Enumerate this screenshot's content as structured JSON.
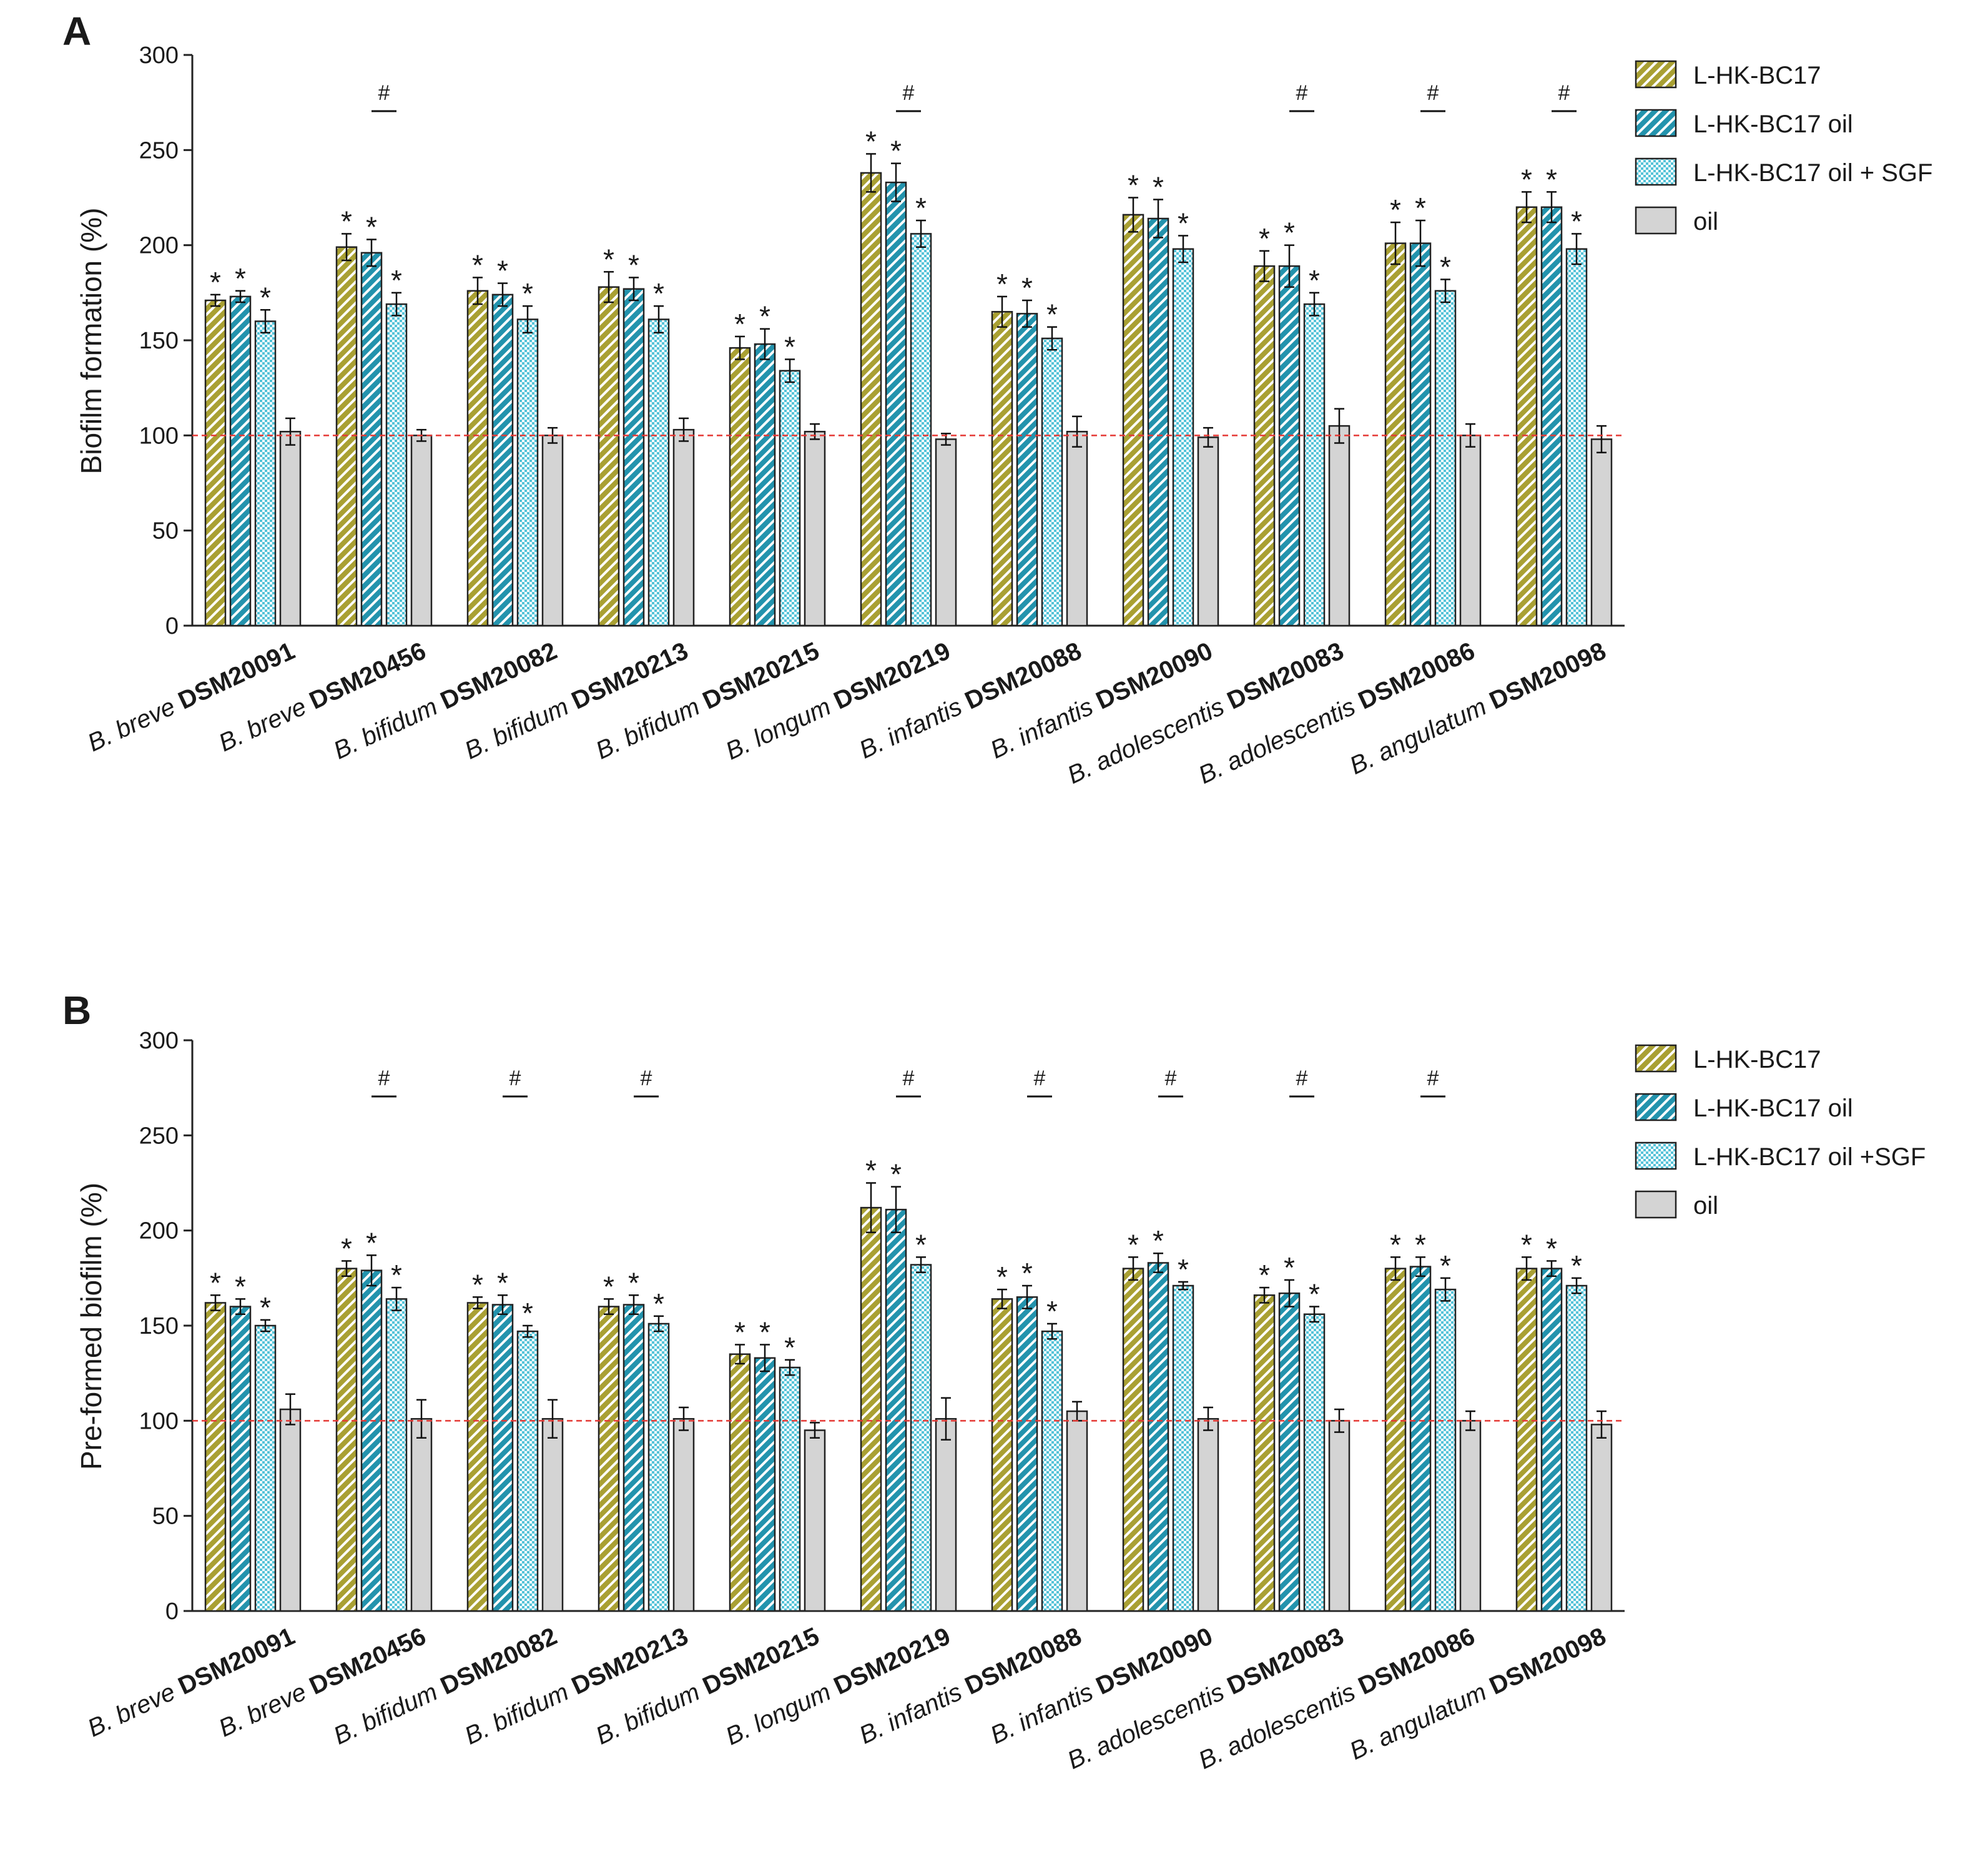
{
  "chart_data": [
    {
      "type": "bar",
      "panel_label": "A",
      "ylabel": "Biofilm formation (%)",
      "xlabel": "",
      "ylim": [
        0,
        300
      ],
      "yticks": [
        0,
        50,
        100,
        150,
        200,
        250,
        300
      ],
      "reference_line": {
        "y": 100,
        "style": "dashed",
        "color": "#e53935"
      },
      "legend_position": "top-right",
      "categories": [
        {
          "species": "B. breve",
          "strain": "DSM20091"
        },
        {
          "species": "B. breve",
          "strain": "DSM20456"
        },
        {
          "species": "B. bifidum",
          "strain": "DSM20082"
        },
        {
          "species": "B. bifidum",
          "strain": "DSM20213"
        },
        {
          "species": "B. bifidum",
          "strain": "DSM20215"
        },
        {
          "species": "B. longum",
          "strain": "DSM20219"
        },
        {
          "species": "B. infantis",
          "strain": "DSM20088"
        },
        {
          "species": "B. infantis",
          "strain": "DSM20090"
        },
        {
          "species": "B. adolescentis",
          "strain": "DSM20083"
        },
        {
          "species": "B. adolescentis",
          "strain": "DSM20086"
        },
        {
          "species": "B. angulatum",
          "strain": "DSM20098"
        }
      ],
      "series": [
        {
          "name": "L-HK-BC17",
          "pattern": "hatch-olive",
          "values": [
            171,
            199,
            176,
            178,
            146,
            238,
            165,
            216,
            189,
            201,
            220
          ],
          "errors": [
            3,
            7,
            7,
            8,
            6,
            10,
            8,
            9,
            8,
            11,
            8
          ],
          "stars": [
            true,
            true,
            true,
            true,
            true,
            true,
            true,
            true,
            true,
            true,
            true
          ]
        },
        {
          "name": "L-HK-BC17 oil",
          "pattern": "hatch-teal",
          "values": [
            173,
            196,
            174,
            177,
            148,
            233,
            164,
            214,
            189,
            201,
            220
          ],
          "errors": [
            3,
            7,
            6,
            6,
            8,
            10,
            7,
            10,
            11,
            12,
            8
          ],
          "stars": [
            true,
            true,
            true,
            true,
            true,
            true,
            true,
            true,
            true,
            true,
            true
          ]
        },
        {
          "name": "L-HK-BC17 oil + SGF",
          "pattern": "dots-cyan",
          "values": [
            160,
            169,
            161,
            161,
            134,
            206,
            151,
            198,
            169,
            176,
            198
          ],
          "errors": [
            6,
            6,
            7,
            7,
            6,
            7,
            6,
            7,
            6,
            6,
            8
          ],
          "stars": [
            true,
            true,
            true,
            true,
            true,
            true,
            true,
            true,
            true,
            true,
            true
          ]
        },
        {
          "name": "oil",
          "pattern": "solid-grey",
          "values": [
            102,
            100,
            100,
            103,
            102,
            98,
            102,
            99,
            105,
            100,
            98
          ],
          "errors": [
            7,
            3,
            4,
            6,
            4,
            3,
            8,
            5,
            9,
            6,
            7
          ],
          "stars": [
            false,
            false,
            false,
            false,
            false,
            false,
            false,
            false,
            false,
            false,
            false
          ]
        }
      ],
      "hash_marks": [
        false,
        true,
        false,
        false,
        false,
        true,
        false,
        false,
        true,
        true,
        true
      ],
      "star_label": "*",
      "hash_label": "#"
    },
    {
      "type": "bar",
      "panel_label": "B",
      "ylabel": "Pre-formed biofilm (%)",
      "xlabel": "",
      "ylim": [
        0,
        300
      ],
      "yticks": [
        0,
        50,
        100,
        150,
        200,
        250,
        300
      ],
      "reference_line": {
        "y": 100,
        "style": "dashed",
        "color": "#e53935"
      },
      "legend_position": "top-right",
      "categories": [
        {
          "species": "B. breve",
          "strain": "DSM20091"
        },
        {
          "species": "B. breve",
          "strain": "DSM20456"
        },
        {
          "species": "B. bifidum",
          "strain": "DSM20082"
        },
        {
          "species": "B. bifidum",
          "strain": "DSM20213"
        },
        {
          "species": "B. bifidum",
          "strain": "DSM20215"
        },
        {
          "species": "B. longum",
          "strain": "DSM20219"
        },
        {
          "species": "B. infantis",
          "strain": "DSM20088"
        },
        {
          "species": "B. infantis",
          "strain": "DSM20090"
        },
        {
          "species": "B. adolescentis",
          "strain": "DSM20083"
        },
        {
          "species": "B. adolescentis",
          "strain": "DSM20086"
        },
        {
          "species": "B. angulatum",
          "strain": "DSM20098"
        }
      ],
      "series": [
        {
          "name": "L-HK-BC17",
          "pattern": "hatch-olive",
          "values": [
            162,
            180,
            162,
            160,
            135,
            212,
            164,
            180,
            166,
            180,
            180
          ],
          "errors": [
            4,
            4,
            3,
            4,
            5,
            13,
            5,
            6,
            4,
            6,
            6
          ],
          "stars": [
            true,
            true,
            true,
            true,
            true,
            true,
            true,
            true,
            true,
            true,
            true
          ]
        },
        {
          "name": "L-HK-BC17 oil",
          "pattern": "hatch-teal",
          "values": [
            160,
            179,
            161,
            161,
            133,
            211,
            165,
            183,
            167,
            181,
            180
          ],
          "errors": [
            4,
            8,
            5,
            5,
            7,
            12,
            6,
            5,
            7,
            5,
            4
          ],
          "stars": [
            true,
            true,
            true,
            true,
            true,
            true,
            true,
            true,
            true,
            true,
            true
          ]
        },
        {
          "name": "L-HK-BC17 oil +SGF",
          "pattern": "dots-cyan",
          "values": [
            150,
            164,
            147,
            151,
            128,
            182,
            147,
            171,
            156,
            169,
            171
          ],
          "errors": [
            3,
            6,
            3,
            4,
            4,
            4,
            4,
            2,
            4,
            6,
            4
          ],
          "stars": [
            true,
            true,
            true,
            true,
            true,
            true,
            true,
            true,
            true,
            true,
            true
          ]
        },
        {
          "name": "oil",
          "pattern": "solid-grey",
          "values": [
            106,
            101,
            101,
            101,
            95,
            101,
            105,
            101,
            100,
            100,
            98
          ],
          "errors": [
            8,
            10,
            10,
            6,
            4,
            11,
            5,
            6,
            6,
            5,
            7
          ],
          "stars": [
            false,
            false,
            false,
            false,
            false,
            false,
            false,
            false,
            false,
            false,
            false
          ]
        }
      ],
      "hash_marks": [
        false,
        true,
        true,
        true,
        false,
        true,
        true,
        true,
        true,
        true,
        false
      ],
      "star_label": "*",
      "hash_label": "#"
    }
  ]
}
